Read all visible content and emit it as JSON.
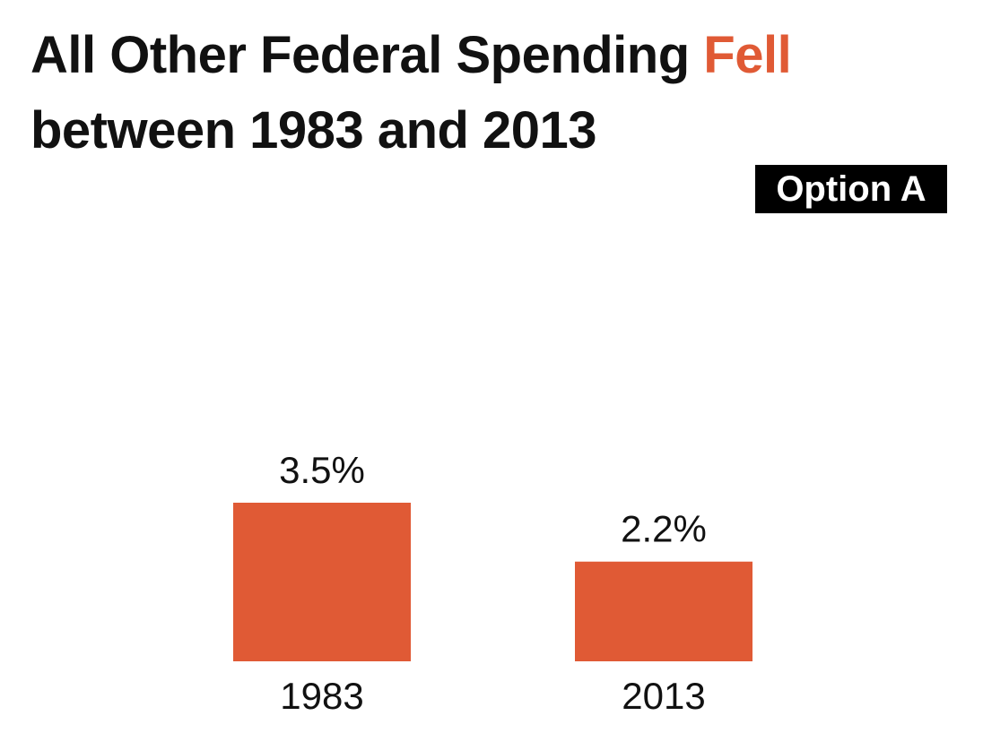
{
  "chart_data": {
    "type": "bar",
    "title_prefix": "All Other Federal Spending ",
    "title_highlight": "Fell",
    "title_suffix": "between 1983 and 2013",
    "categories": [
      "1983",
      "2013"
    ],
    "values": [
      3.5,
      2.2
    ],
    "value_labels": [
      "3.5%",
      "2.2%"
    ],
    "xlabel": "",
    "ylabel": "",
    "ylim": [
      0,
      5
    ],
    "bar_color": "#e05a35",
    "highlight_color": "#e05a35"
  },
  "badge": {
    "label": "Option A"
  }
}
